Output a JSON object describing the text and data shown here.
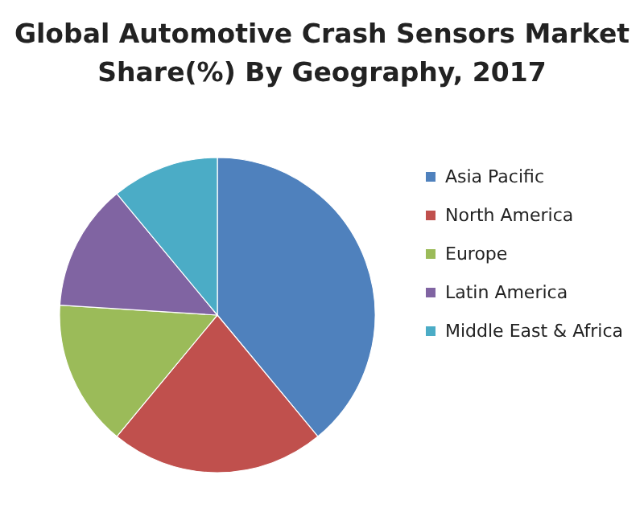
{
  "chart_data": {
    "type": "pie",
    "title": "Global Automotive Crash Sensors Market\nShare(%) By Geography, 2017",
    "categories": [
      "Asia Pacific",
      "North America",
      "Europe",
      "Latin America",
      "Middle East & Africa"
    ],
    "values": [
      39,
      22,
      15,
      13,
      11
    ],
    "colors": [
      "#4f81bd",
      "#c0504d",
      "#9bbb59",
      "#8064a2",
      "#4bacc6"
    ],
    "legend": "right"
  }
}
